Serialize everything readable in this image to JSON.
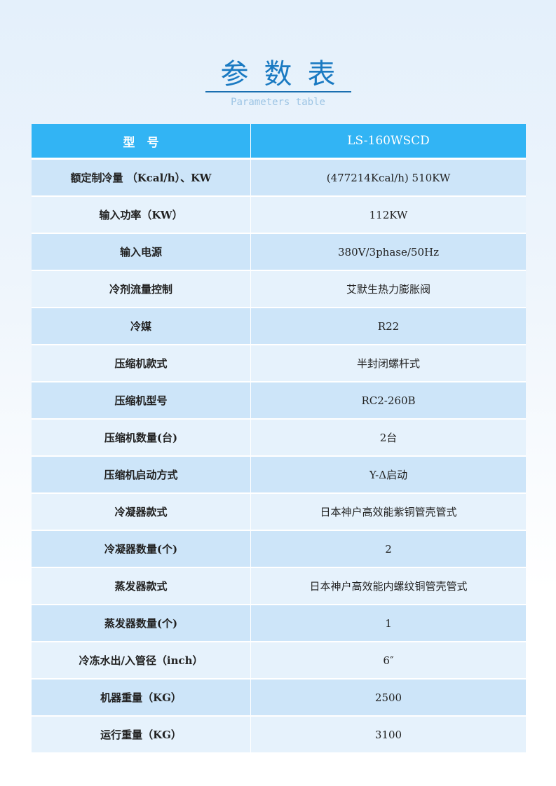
{
  "title": "参数表",
  "subtitle": "Parameters table",
  "header": {
    "label": "型　号",
    "value": "LS-160WSCD"
  },
  "rows": [
    {
      "label": "额定制冷量 （Kcal/h）、KW",
      "value": "(477214Kcal/h)  510KW"
    },
    {
      "label": "输入功率（KW）",
      "value": "112KW"
    },
    {
      "label": "输入电源",
      "value": "380V/3phase/50Hz"
    },
    {
      "label": "冷剂流量控制",
      "value": "艾默生热力膨胀阀"
    },
    {
      "label": "冷媒",
      "value": "R22"
    },
    {
      "label": "压缩机款式",
      "value": "半封闭螺杆式"
    },
    {
      "label": "压缩机型号",
      "value": "RC2-260B"
    },
    {
      "label": "压缩机数量(台)",
      "value": "2台"
    },
    {
      "label": "压缩机启动方式",
      "value": "Y-Δ启动"
    },
    {
      "label": "冷凝器款式",
      "value": "日本神户高效能紫铜管壳管式"
    },
    {
      "label": "冷凝器数量(个)",
      "value": "2"
    },
    {
      "label": "蒸发器款式",
      "value": "日本神户高效能内螺纹铜管壳管式"
    },
    {
      "label": "蒸发器数量(个)",
      "value": "1"
    },
    {
      "label": "冷冻水出/入管径（inch）",
      "value": "6″"
    },
    {
      "label": "机器重量（KG）",
      "value": "2500"
    },
    {
      "label": "运行重量（KG）",
      "value": "3100"
    }
  ]
}
